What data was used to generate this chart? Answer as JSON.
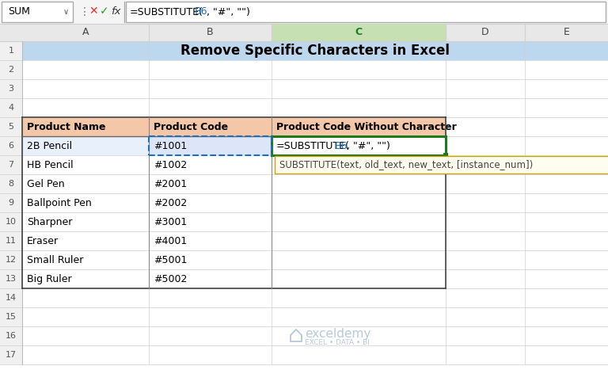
{
  "title": "Remove Specific Characters in Excel",
  "formula_bar_text": "=SUBSTITUTE(B6, \"#\", \"\")",
  "name_box": "SUM",
  "col_headers": [
    "A",
    "B",
    "C",
    "D",
    "E"
  ],
  "row_numbers": [
    "1",
    "2",
    "3",
    "4",
    "5",
    "6",
    "7",
    "8",
    "9",
    "10",
    "11",
    "12",
    "13",
    "14",
    "15",
    "16",
    "17"
  ],
  "header_row5": [
    "Product Name",
    "Product Code",
    "Product Code Without Character"
  ],
  "data_rows": [
    [
      "2B Pencil",
      "#1001",
      "=SUBSTITUTE(B6, \"#\", \"\")"
    ],
    [
      "HB Pencil",
      "#1002",
      ""
    ],
    [
      "Gel Pen",
      "#2001",
      ""
    ],
    [
      "Ballpoint Pen",
      "#2002",
      ""
    ],
    [
      "Sharpner",
      "#3001",
      ""
    ],
    [
      "Eraser",
      "#4001",
      ""
    ],
    [
      "Small Ruler",
      "#5001",
      ""
    ],
    [
      "Big Ruler",
      "#5002",
      ""
    ]
  ],
  "tooltip_text": "SUBSTITUTE(text, old_text, new_text, [instance_num])",
  "watermark_line1": "exceldemy",
  "watermark_line2": "EXCEL • DATA • BI",
  "bg_color": "#ffffff",
  "grid_color": "#d0d0d0",
  "row1_title_bg": "#bdd7ee",
  "col_header_bg": "#e8e8e8",
  "header5_bg": "#f4c7a8",
  "active_cell_border": "#1f7a1f",
  "row_number_color": "#555555",
  "tooltip_bg": "#fffdf0",
  "tooltip_border": "#c8a800",
  "highlight_row6_a": "#e8f0fb",
  "highlight_row6_b": "#dce6f8",
  "col_c_header_bg": "#c6e0b4",
  "col_c_header_fg": "#1f7a1f",
  "blue_ref": "#1e6fc0",
  "formula_bar_bg": "#f5f5f5",
  "watermark_color": "#b0c4d8"
}
